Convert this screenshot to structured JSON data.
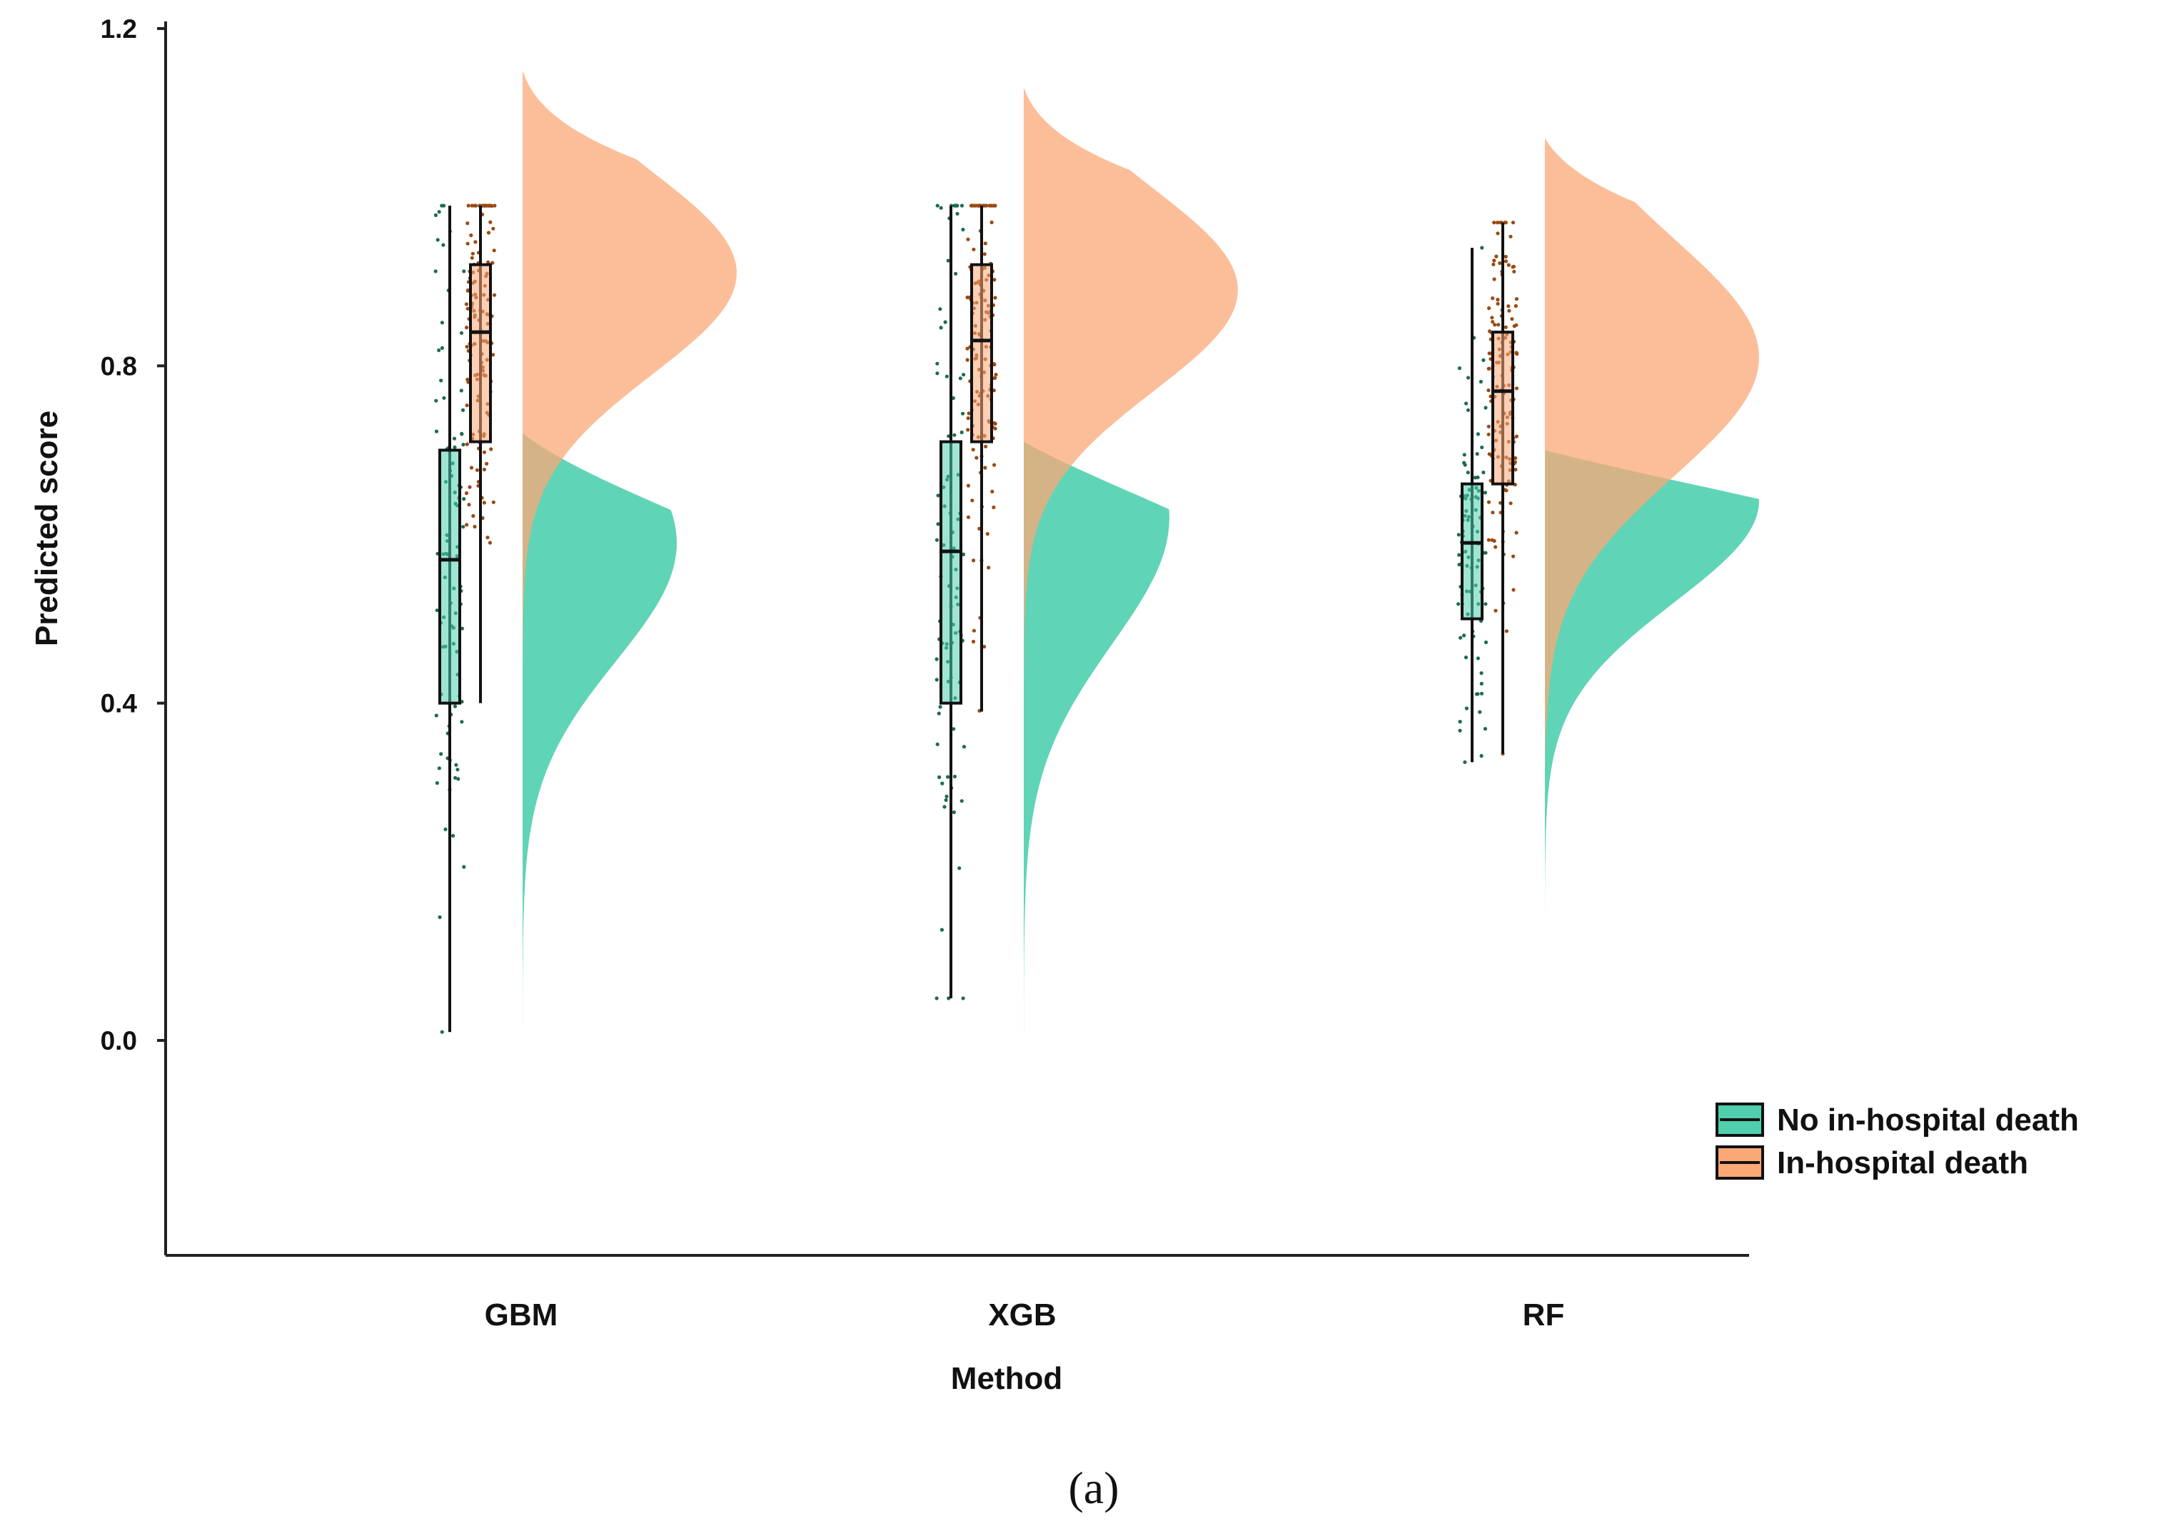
{
  "colors": {
    "no_death": "#4fcfae",
    "death": "#fba877",
    "overlap": "#b08d58",
    "axis": "#222222",
    "jitter_no_death": "#1d6b52",
    "jitter_death": "#9a4a12"
  },
  "chart_data": {
    "type": "raincloud",
    "title": "",
    "xlabel": "Method",
    "ylabel": "Predicted score",
    "ylim": [
      -0.25,
      1.21
    ],
    "yticks": [
      0.0,
      0.4,
      0.8,
      1.2
    ],
    "ytick_labels": [
      "0.0",
      "0.4",
      "0.8",
      "1.2"
    ],
    "categories": [
      "GBM",
      "XGB",
      "RF"
    ],
    "legend": {
      "position": "right",
      "entries": [
        "No in-hospital death",
        "In-hospital death"
      ]
    },
    "caption": "(a)",
    "series": [
      {
        "name": "No in-hospital death",
        "box": [
          {
            "min": 0.01,
            "q1": 0.4,
            "median": 0.57,
            "q3": 0.7,
            "max": 0.99
          },
          {
            "min": 0.05,
            "q1": 0.4,
            "median": 0.58,
            "q3": 0.71,
            "max": 0.99
          },
          {
            "min": 0.33,
            "q1": 0.5,
            "median": 0.59,
            "q3": 0.66,
            "max": 0.94
          }
        ],
        "density_range": [
          [
            -0.19,
            0.72
          ],
          [
            -0.09,
            0.71
          ],
          [
            0.12,
            0.7
          ]
        ],
        "density_peak": [
          0.59,
          0.62,
          0.64
        ],
        "density_spread": [
          0.14,
          0.15,
          0.12
        ],
        "density_width": [
          0.72,
          0.68,
          1.0
        ]
      },
      {
        "name": "In-hospital death",
        "box": [
          {
            "min": 0.4,
            "q1": 0.71,
            "median": 0.84,
            "q3": 0.92,
            "max": 0.99
          },
          {
            "min": 0.39,
            "q1": 0.71,
            "median": 0.83,
            "q3": 0.92,
            "max": 0.99
          },
          {
            "min": 0.34,
            "q1": 0.66,
            "median": 0.77,
            "q3": 0.84,
            "max": 0.97
          }
        ],
        "density_range": [
          [
            0.1,
            1.15
          ],
          [
            0.15,
            1.13
          ],
          [
            0.31,
            1.07
          ]
        ],
        "density_peak": [
          0.91,
          0.89,
          0.81
        ],
        "density_spread": [
          0.12,
          0.12,
          0.14
        ],
        "density_width": [
          1.0,
          1.0,
          1.0
        ]
      }
    ]
  }
}
